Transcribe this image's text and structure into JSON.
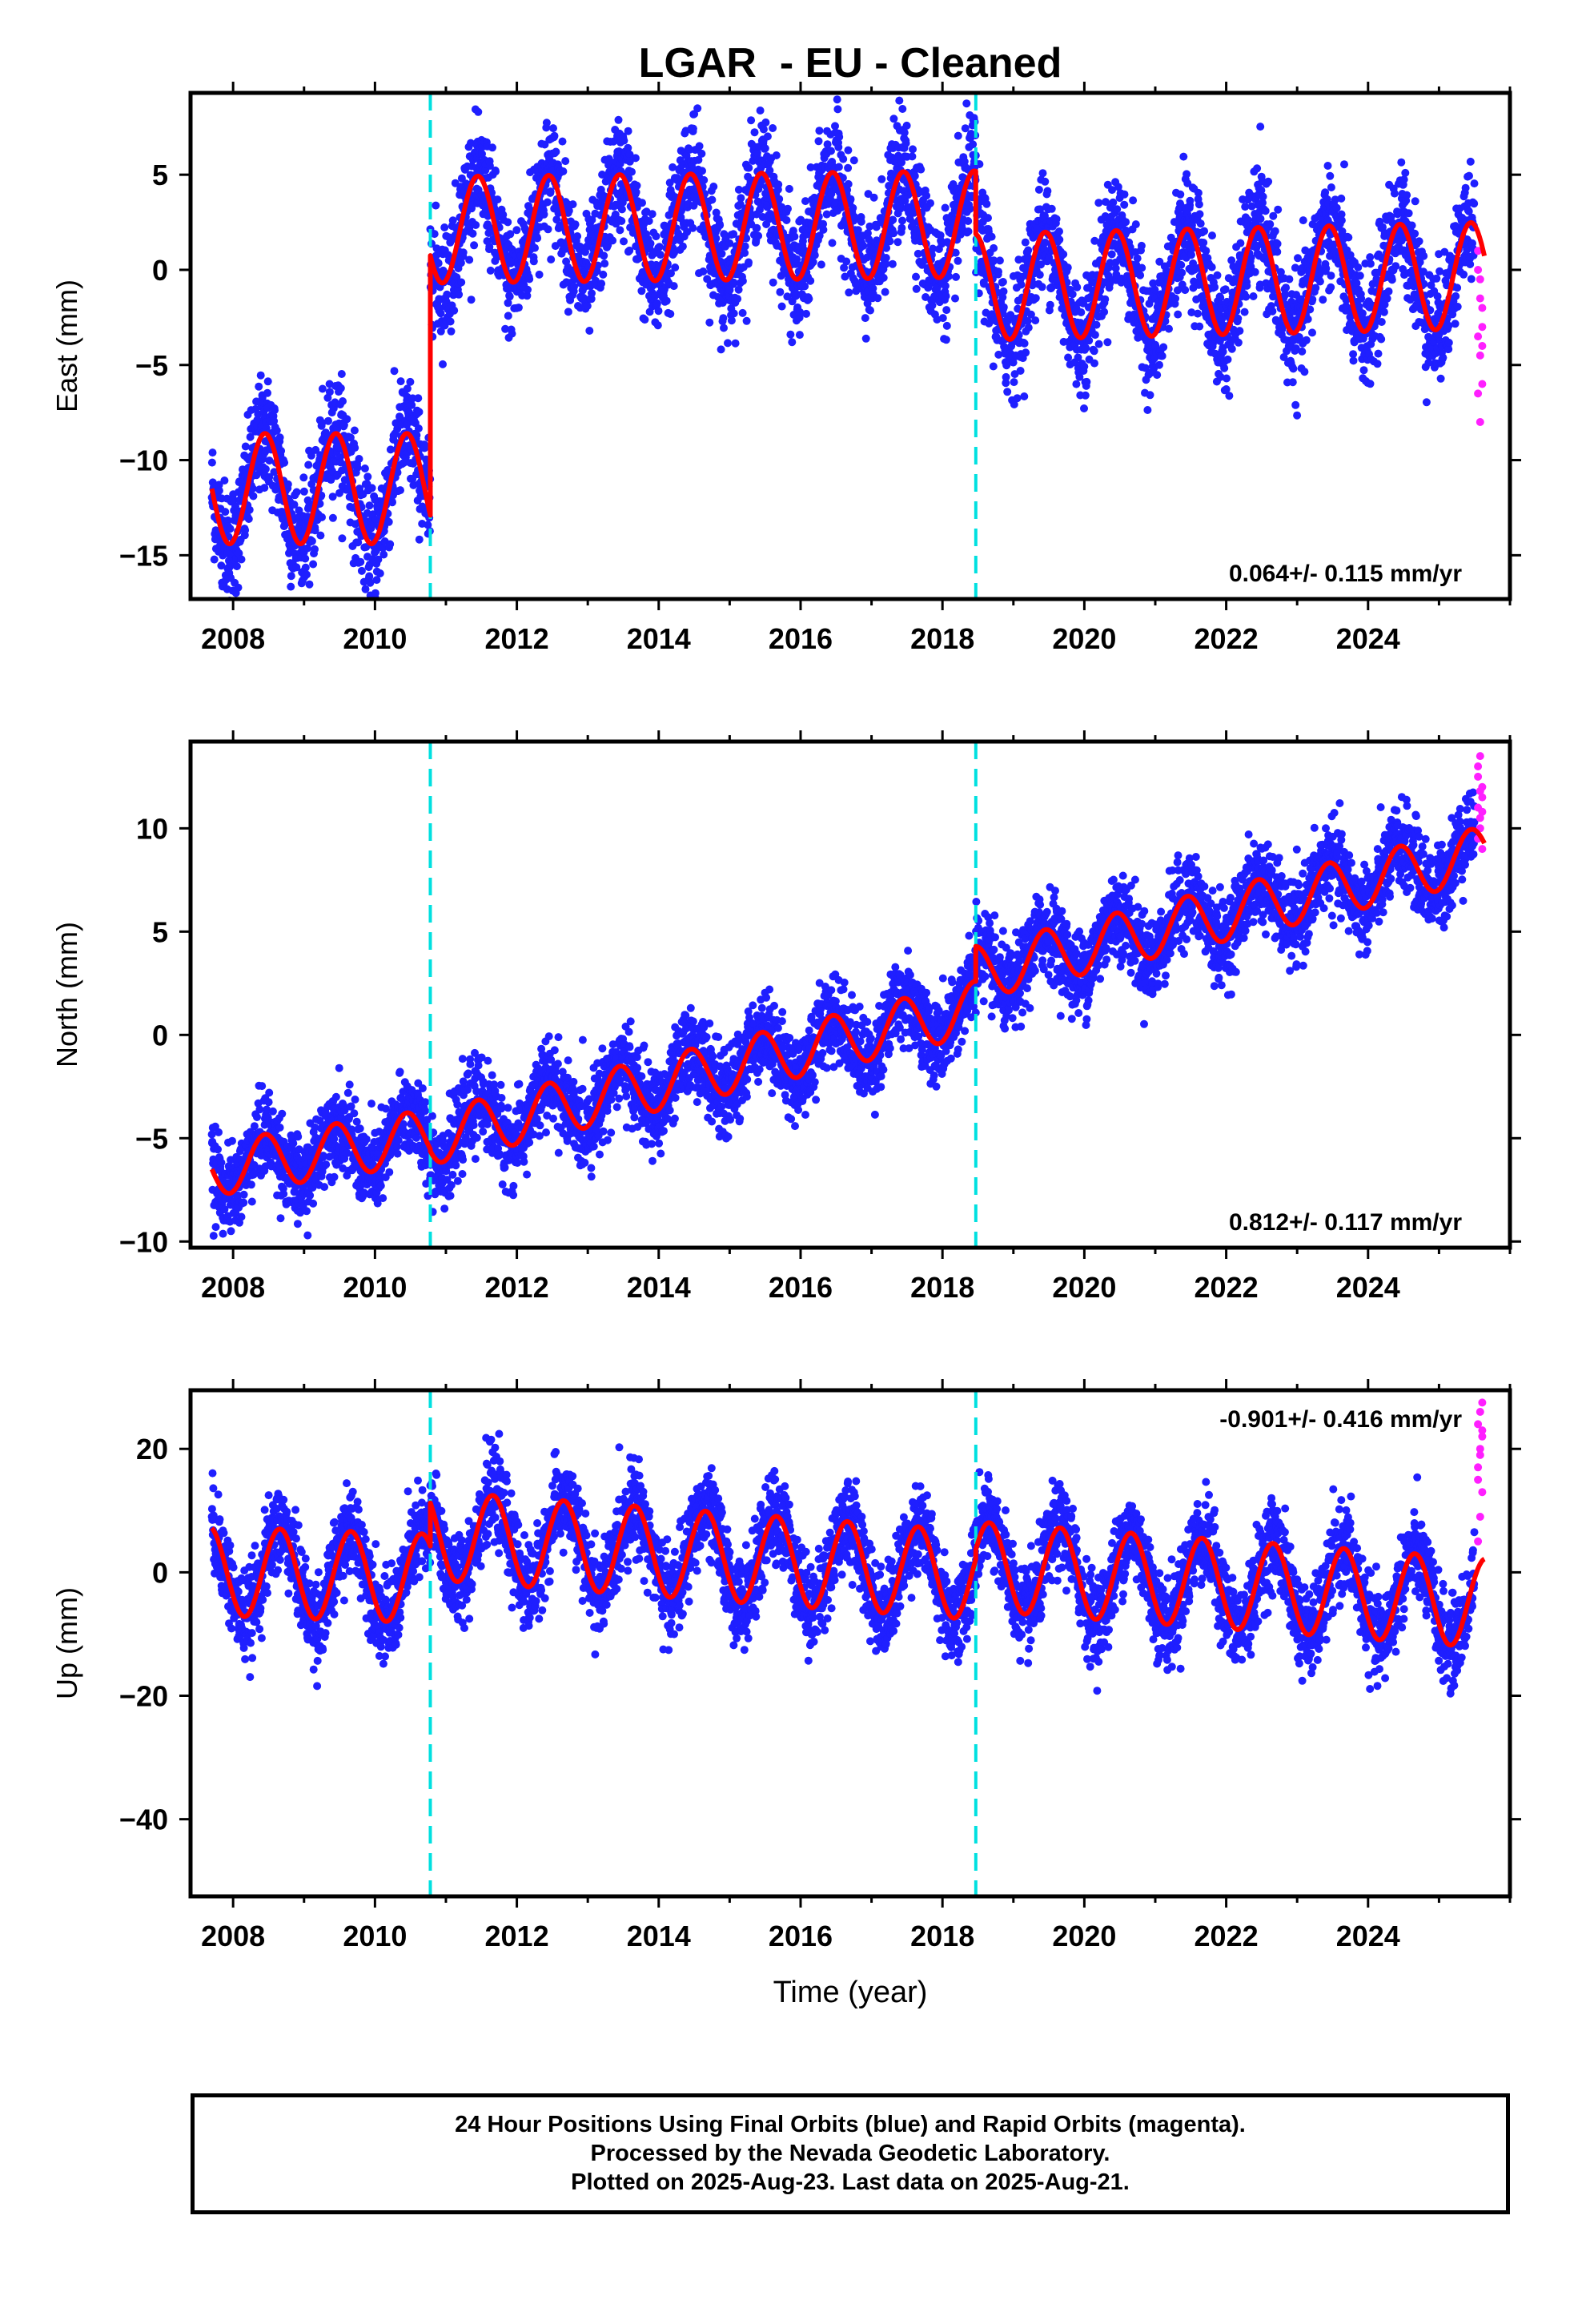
{
  "title": "LGAR  - EU - Cleaned",
  "xlabel": "Time (year)",
  "caption": [
    "24 Hour Positions Using Final Orbits (blue) and Rapid Orbits (magenta).",
    "Processed by the Nevada Geodetic Laboratory.",
    "Plotted on 2025-Aug-23. Last data on 2025-Aug-21."
  ],
  "colors": {
    "final_orbits": "#1f1fff",
    "rapid_orbits": "#ff1fff",
    "model": "#ff0000",
    "offsets": "#00e0e0"
  },
  "chart_data": [
    {
      "type": "scatter",
      "ylabel": "East (mm)",
      "rate_label": "0.064+/- 0.115 mm/yr",
      "rate_position": "bottom-right",
      "xlim": [
        2007.4,
        2026.0
      ],
      "ylim": [
        -17.3,
        9.3
      ],
      "xticks": [
        2008,
        2010,
        2012,
        2014,
        2016,
        2018,
        2020,
        2022,
        2024
      ],
      "yticks": [
        -15,
        -10,
        -5,
        0,
        5
      ],
      "offsets": [
        2010.78,
        2018.47
      ],
      "data_range": [
        2007.7,
        2025.64
      ],
      "rapid_start": 2025.5,
      "model_segments": [
        {
          "start": 2007.7,
          "end": 2010.78,
          "base_start": -11.5,
          "base_end": -11.5,
          "amplitude": 2.9,
          "peak": 2008.45
        },
        {
          "start": 2010.78,
          "end": 2018.47,
          "base_start": 2.1,
          "base_end": 2.4,
          "amplitude": 2.8,
          "peak": 2008.45
        },
        {
          "start": 2018.47,
          "end": 2025.64,
          "base_start": -0.9,
          "base_end": -0.3,
          "amplitude": 2.8,
          "peak": 2008.45
        }
      ],
      "scatter_sigma": 1.5,
      "rapid_values": [
        1.0,
        -0.5,
        -2.0,
        -3.5,
        -4.5,
        -6.0,
        -6.5,
        -8.0,
        -3.0,
        0.0,
        -1.5,
        -4.0
      ]
    },
    {
      "type": "scatter",
      "ylabel": "North (mm)",
      "rate_label": "0.812+/- 0.117 mm/yr",
      "rate_position": "bottom-right",
      "xlim": [
        2007.4,
        2026.0
      ],
      "ylim": [
        -10.3,
        14.2
      ],
      "xticks": [
        2008,
        2010,
        2012,
        2014,
        2016,
        2018,
        2020,
        2022,
        2024
      ],
      "yticks": [
        -10,
        -5,
        0,
        5,
        10
      ],
      "offsets": [
        2010.78,
        2018.47
      ],
      "data_range": [
        2007.7,
        2025.64
      ],
      "rapid_start": 2025.5,
      "model_segments": [
        {
          "start": 2007.7,
          "end": 2010.78,
          "base_start": -6.5,
          "base_end": -4.9,
          "amplitude": 1.3,
          "peak": 2008.45
        },
        {
          "start": 2010.78,
          "end": 2018.47,
          "base_start": -5.0,
          "base_end": 1.3,
          "amplitude": 1.3,
          "peak": 2008.45
        },
        {
          "start": 2018.47,
          "end": 2025.64,
          "base_start": 3.0,
          "base_end": 8.8,
          "amplitude": 1.3,
          "peak": 2008.45
        }
      ],
      "scatter_sigma": 1.0,
      "rapid_values": [
        9.5,
        10.5,
        11.5,
        12.5,
        13.5,
        12.0,
        11.0,
        10.0,
        9.0,
        13.0,
        11.8,
        10.8
      ]
    },
    {
      "type": "scatter",
      "ylabel": "Up (mm)",
      "rate_label": "-0.901+/- 0.416 mm/yr",
      "rate_position": "top-right",
      "xlim": [
        2007.4,
        2026.0
      ],
      "ylim": [
        -52.5,
        29.5
      ],
      "xticks": [
        2008,
        2010,
        2012,
        2014,
        2016,
        2018,
        2020,
        2022,
        2024
      ],
      "yticks": [
        -40,
        -20,
        0,
        20
      ],
      "offsets": [
        2010.78,
        2018.47
      ],
      "data_range": [
        2007.7,
        2025.64
      ],
      "rapid_start": 2025.5,
      "model_segments": [
        {
          "start": 2007.7,
          "end": 2010.78,
          "base_start": 0.2,
          "base_end": -1.0,
          "amplitude": 7.2,
          "peak": 2007.66
        },
        {
          "start": 2010.78,
          "end": 2018.47,
          "base_start": 6.0,
          "base_end": -0.5,
          "amplitude": 7.2,
          "peak": 2007.66
        },
        {
          "start": 2018.47,
          "end": 2025.64,
          "base_start": 1.0,
          "base_end": -5.0,
          "amplitude": 7.2,
          "peak": 2007.66
        }
      ],
      "scatter_sigma": 3.5,
      "rapid_values": [
        5.0,
        9.0,
        13.0,
        17.0,
        20.0,
        22.0,
        24.0,
        26.0,
        27.5,
        15.0,
        19.0,
        23.0
      ]
    }
  ]
}
